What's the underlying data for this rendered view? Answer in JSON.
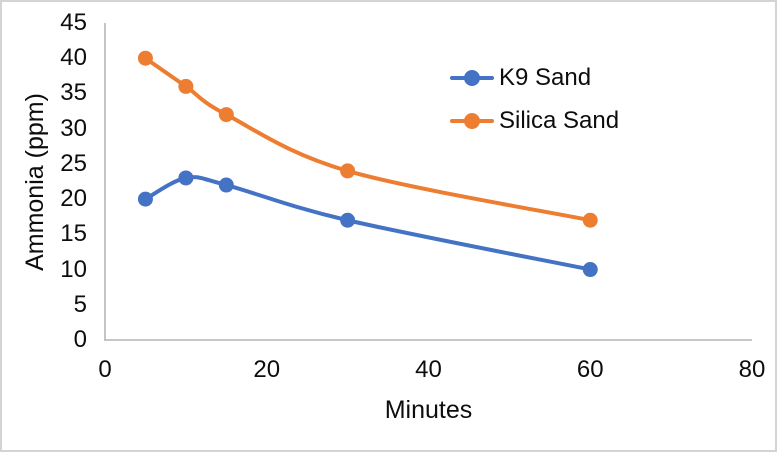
{
  "frame": {
    "background": "#FFFFFF",
    "border_color": "#D4D4D4"
  },
  "chart_data": {
    "type": "line",
    "x": [
      5,
      10,
      15,
      30,
      60
    ],
    "series": [
      {
        "name": "K9 Sand",
        "color": "#4472C4",
        "values": [
          20,
          23,
          22,
          17,
          10
        ]
      },
      {
        "name": "Silica Sand",
        "color": "#ED7D31",
        "values": [
          40,
          36,
          32,
          24,
          17
        ]
      }
    ],
    "title": "",
    "xlabel": "Minutes",
    "ylabel": "Ammonia (ppm)",
    "xlim": [
      0,
      80
    ],
    "ylim": [
      0,
      45
    ],
    "xticks": [
      0,
      20,
      40,
      60,
      80
    ],
    "yticks": [
      0,
      5,
      10,
      15,
      20,
      25,
      30,
      35,
      40,
      45
    ],
    "grid": false,
    "smooth_lines": true,
    "marker": "circle",
    "legend_position": "inside-top-right",
    "axis_color": "#BFBFBF",
    "text_color": "#0D0D0D"
  }
}
